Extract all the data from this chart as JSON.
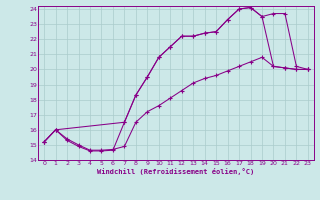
{
  "xlabel": "Windchill (Refroidissement éolien,°C)",
  "background_color": "#cce8e8",
  "grid_color": "#aacccc",
  "line_color": "#880088",
  "xlim": [
    -0.5,
    23.5
  ],
  "ylim": [
    14,
    24.2
  ],
  "xticks": [
    0,
    1,
    2,
    3,
    4,
    5,
    6,
    7,
    8,
    9,
    10,
    11,
    12,
    13,
    14,
    15,
    16,
    17,
    18,
    19,
    20,
    21,
    22,
    23
  ],
  "yticks": [
    14,
    15,
    16,
    17,
    18,
    19,
    20,
    21,
    22,
    23,
    24
  ],
  "line1_x": [
    0,
    1,
    2,
    3,
    4,
    5,
    6,
    7,
    8,
    9,
    10,
    11,
    12,
    13,
    14,
    15,
    16,
    17,
    18,
    19,
    20,
    21,
    22,
    23
  ],
  "line1_y": [
    15.2,
    16.0,
    15.3,
    14.9,
    14.6,
    14.6,
    14.65,
    16.5,
    18.3,
    19.5,
    20.8,
    21.5,
    22.2,
    22.2,
    22.4,
    22.5,
    23.3,
    24.0,
    24.1,
    23.5,
    23.7,
    23.7,
    20.2,
    20.0
  ],
  "line2_x": [
    0,
    1,
    2,
    3,
    4,
    5,
    6,
    7,
    8,
    9,
    10,
    11,
    12,
    13,
    14,
    15,
    16,
    17,
    18,
    19,
    20,
    21,
    22,
    23
  ],
  "line2_y": [
    15.2,
    16.0,
    15.4,
    15.0,
    14.65,
    14.65,
    14.7,
    14.9,
    16.5,
    17.2,
    17.6,
    18.1,
    18.6,
    19.1,
    19.4,
    19.6,
    19.9,
    20.2,
    20.5,
    20.8,
    20.2,
    20.1,
    20.0,
    20.0
  ],
  "line3_x": [
    0,
    1,
    7,
    8,
    9,
    10,
    11,
    12,
    13,
    14,
    15,
    16,
    17,
    18,
    19,
    20,
    21,
    22,
    23
  ],
  "line3_y": [
    15.2,
    16.0,
    16.5,
    18.3,
    19.5,
    20.8,
    21.5,
    22.2,
    22.2,
    22.4,
    22.5,
    23.3,
    24.0,
    24.1,
    23.5,
    20.2,
    20.1,
    20.0,
    20.0
  ]
}
